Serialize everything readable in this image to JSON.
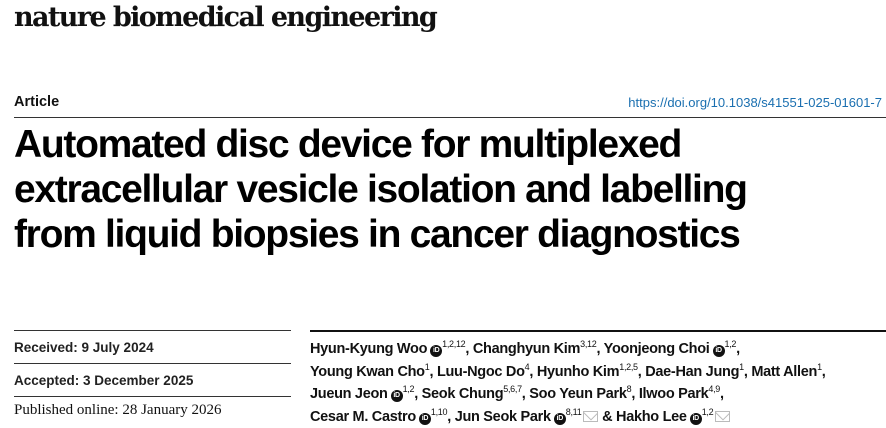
{
  "journal": "nature biomedical engineering",
  "article_type": "Article",
  "doi": "https://doi.org/10.1038/s41551-025-01601-7",
  "title_lines": [
    "Automated disc device for multiplexed",
    "extracellular vesicle isolation and labelling",
    "from liquid biopsies in cancer diagnostics"
  ],
  "dates": {
    "received": "Received: 9 July 2024",
    "accepted": "Accepted: 3 December 2025",
    "published": "Published online: 28 January 2026"
  },
  "authors": [
    {
      "name": "Hyun-Kyung Woo",
      "orcid": true,
      "sup": "1,2,12",
      "sep": ", "
    },
    {
      "name": "Changhyun Kim",
      "orcid": false,
      "sup": "3,12",
      "sep": ", "
    },
    {
      "name": "Yoonjeong Choi",
      "orcid": true,
      "sup": "1,2",
      "sep": ", "
    },
    {
      "name": "Young Kwan Cho",
      "orcid": false,
      "sup": "1",
      "sep": ", "
    },
    {
      "name": "Luu-Ngoc Do",
      "orcid": false,
      "sup": "4",
      "sep": ", "
    },
    {
      "name": "Hyunho Kim",
      "orcid": false,
      "sup": "1,2,5",
      "sep": ", "
    },
    {
      "name": "Dae-Han Jung",
      "orcid": false,
      "sup": "1",
      "sep": ", "
    },
    {
      "name": "Matt Allen",
      "orcid": false,
      "sup": "1",
      "sep": ", "
    },
    {
      "name": "Jueun Jeon",
      "orcid": true,
      "sup": "1,2",
      "sep": ", "
    },
    {
      "name": "Seok Chung",
      "orcid": false,
      "sup": "5,6,7",
      "sep": ", "
    },
    {
      "name": "Soo Yeun Park",
      "orcid": false,
      "sup": "8",
      "sep": ", "
    },
    {
      "name": "Ilwoo Park",
      "orcid": false,
      "sup": "4,9",
      "sep": ", "
    },
    {
      "name": "Cesar M. Castro",
      "orcid": true,
      "sup": "1,10",
      "sep": ", "
    },
    {
      "name": "Jun Seok Park",
      "orcid": true,
      "sup": "8,11",
      "email": true,
      "sep": " & "
    },
    {
      "name": "Hakho Lee",
      "orcid": true,
      "sup": "1,2",
      "email": true,
      "sep": ""
    }
  ],
  "orcid_label": "iD"
}
